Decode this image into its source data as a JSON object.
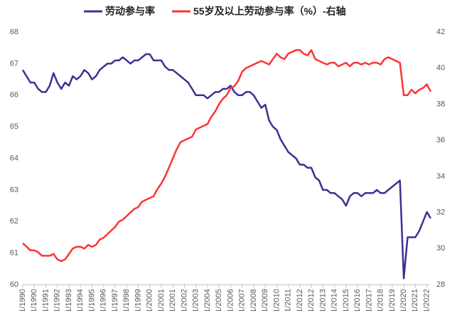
{
  "chart_data": {
    "type": "line",
    "categories": [
      "1/1/1990",
      null,
      null,
      "12/1/1990",
      null,
      null,
      "11/1/1991",
      null,
      null,
      "10/1/1992",
      null,
      null,
      "9/1/1993",
      null,
      null,
      "8/1/1994",
      null,
      null,
      "7/1/1995",
      null,
      null,
      "6/1/1996",
      null,
      null,
      "5/1/1997",
      null,
      null,
      "4/1/1998",
      null,
      null,
      "3/1/1999",
      null,
      null,
      "2/1/2000",
      null,
      null,
      "1/1/2001",
      null,
      null,
      "12/1/2001",
      null,
      null,
      "11/1/2002",
      null,
      null,
      "10/1/2003",
      null,
      null,
      "9/1/2004",
      null,
      null,
      "8/1/2005",
      null,
      null,
      "7/1/2006",
      null,
      null,
      "6/1/2007",
      null,
      null,
      "5/1/2008",
      null,
      null,
      "4/1/2009",
      null,
      null,
      "3/1/2010",
      null,
      null,
      "2/1/2011",
      null,
      null,
      "1/1/2012",
      null,
      null,
      "12/1/2012",
      null,
      null,
      "11/1/2013",
      null,
      null,
      "10/1/2014",
      null,
      null,
      "9/1/2015",
      null,
      null,
      "8/1/2016",
      null,
      null,
      "7/1/2017",
      null,
      null,
      "6/1/2018",
      null,
      null,
      "5/1/2019",
      null,
      null,
      "4/1/2020",
      null,
      null,
      "3/1/2021",
      null,
      null,
      "2/1/2022",
      null
    ],
    "series": [
      {
        "name": "劳动参与率",
        "color": "#3d3093",
        "axis": "y",
        "values": [
          66.8,
          66.6,
          66.4,
          66.4,
          66.2,
          66.1,
          66.1,
          66.3,
          66.7,
          66.4,
          66.2,
          66.4,
          66.3,
          66.6,
          66.5,
          66.6,
          66.8,
          66.7,
          66.5,
          66.6,
          66.8,
          66.9,
          67.0,
          67.0,
          67.1,
          67.1,
          67.2,
          67.1,
          67.0,
          67.1,
          67.1,
          67.2,
          67.3,
          67.3,
          67.1,
          67.1,
          67.1,
          66.9,
          66.8,
          66.8,
          66.7,
          66.6,
          66.5,
          66.4,
          66.2,
          66.0,
          66.0,
          66.0,
          65.9,
          66.0,
          66.1,
          66.1,
          66.2,
          66.2,
          66.3,
          66.1,
          66.0,
          66.0,
          66.1,
          66.1,
          66.0,
          65.8,
          65.6,
          65.7,
          65.2,
          65.0,
          64.9,
          64.6,
          64.4,
          64.2,
          64.1,
          64.0,
          63.8,
          63.8,
          63.7,
          63.7,
          63.4,
          63.3,
          63.0,
          63.0,
          62.9,
          62.9,
          62.8,
          62.7,
          62.5,
          62.8,
          62.9,
          62.9,
          62.8,
          62.9,
          62.9,
          62.9,
          63.0,
          62.9,
          62.9,
          63.0,
          63.1,
          63.2,
          63.3,
          60.2,
          61.5,
          61.5,
          61.5,
          61.7,
          62.0,
          62.3,
          62.1
        ]
      },
      {
        "name": "55岁及以上劳动参与率（%）-右轴",
        "color": "#ff3333",
        "axis": "y2",
        "values": [
          30.3,
          30.1,
          29.9,
          29.9,
          29.8,
          29.6,
          29.6,
          29.6,
          29.7,
          29.4,
          29.3,
          29.4,
          29.7,
          30.0,
          30.1,
          30.1,
          30.0,
          30.2,
          30.1,
          30.2,
          30.5,
          30.6,
          30.8,
          31.0,
          31.2,
          31.5,
          31.6,
          31.8,
          32.0,
          32.2,
          32.3,
          32.6,
          32.7,
          32.8,
          32.9,
          33.3,
          33.6,
          34.0,
          34.5,
          35.0,
          35.5,
          35.9,
          36.0,
          36.1,
          36.2,
          36.6,
          36.7,
          36.8,
          36.9,
          37.3,
          37.6,
          38.0,
          38.3,
          38.5,
          38.9,
          39.0,
          39.3,
          39.8,
          40.0,
          40.1,
          40.2,
          40.3,
          40.4,
          40.3,
          40.2,
          40.5,
          40.8,
          40.6,
          40.5,
          40.8,
          40.9,
          41.0,
          41.0,
          40.8,
          40.7,
          41.0,
          40.5,
          40.4,
          40.3,
          40.2,
          40.3,
          40.3,
          40.1,
          40.2,
          40.3,
          40.1,
          40.3,
          40.3,
          40.2,
          40.3,
          40.2,
          40.3,
          40.3,
          40.2,
          40.5,
          40.6,
          40.5,
          40.4,
          40.3,
          38.5,
          38.5,
          38.8,
          38.6,
          38.8,
          38.9,
          39.1,
          38.7
        ]
      }
    ],
    "ylim": [
      60,
      68
    ],
    "yticks": [
      60,
      61,
      62,
      63,
      64,
      65,
      66,
      67,
      68
    ],
    "y2lim": [
      28,
      42
    ],
    "y2ticks": [
      28,
      30,
      32,
      34,
      36,
      38,
      40,
      42
    ],
    "legend": "top"
  }
}
